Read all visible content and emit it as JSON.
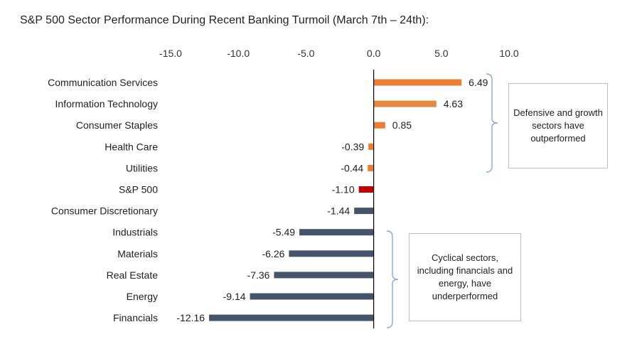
{
  "chart_data": {
    "type": "bar",
    "orientation": "horizontal",
    "title": "S&P 500 Sector Performance During Recent Banking Turmoil (March 7th – 24th):",
    "xlim": [
      -15.0,
      10.0
    ],
    "x_ticks": [
      "-15.0",
      "-10.0",
      "-5.0",
      "0.0",
      "5.0",
      "10.0"
    ],
    "categories": [
      "Communication Services",
      "Information Technology",
      "Consumer Staples",
      "Health Care",
      "Utilities",
      "S&P 500",
      "Consumer Discretionary",
      "Industrials",
      "Materials",
      "Real Estate",
      "Energy",
      "Financials"
    ],
    "values": [
      6.49,
      4.63,
      0.85,
      -0.39,
      -0.44,
      -1.1,
      -1.44,
      -5.49,
      -6.26,
      -7.36,
      -9.14,
      -12.16
    ],
    "value_labels": [
      "6.49",
      "4.63",
      "0.85",
      "-0.39",
      "-0.44",
      "-1.10",
      "-1.44",
      "-5.49",
      "-6.26",
      "-7.36",
      "-9.14",
      "-12.16"
    ],
    "colors": [
      "#ED7D31",
      "#E6883F",
      "#ED7D31",
      "#ED7D31",
      "#ED7D31",
      "#C00000",
      "#44546A",
      "#44546A",
      "#44546A",
      "#44546A",
      "#44546A",
      "#44546A"
    ],
    "annotations": [
      {
        "text": "Defensive and growth sectors have outperformed",
        "spans": [
          "Communication Services",
          "Utilities"
        ]
      },
      {
        "text": "Cyclical sectors, including financials and energy, have underperformed",
        "spans": [
          "Industrials",
          "Financials"
        ]
      }
    ],
    "grid": false,
    "legend": "none"
  },
  "colors": {
    "bracket": "#8EA9DB",
    "axis": "#000000"
  }
}
